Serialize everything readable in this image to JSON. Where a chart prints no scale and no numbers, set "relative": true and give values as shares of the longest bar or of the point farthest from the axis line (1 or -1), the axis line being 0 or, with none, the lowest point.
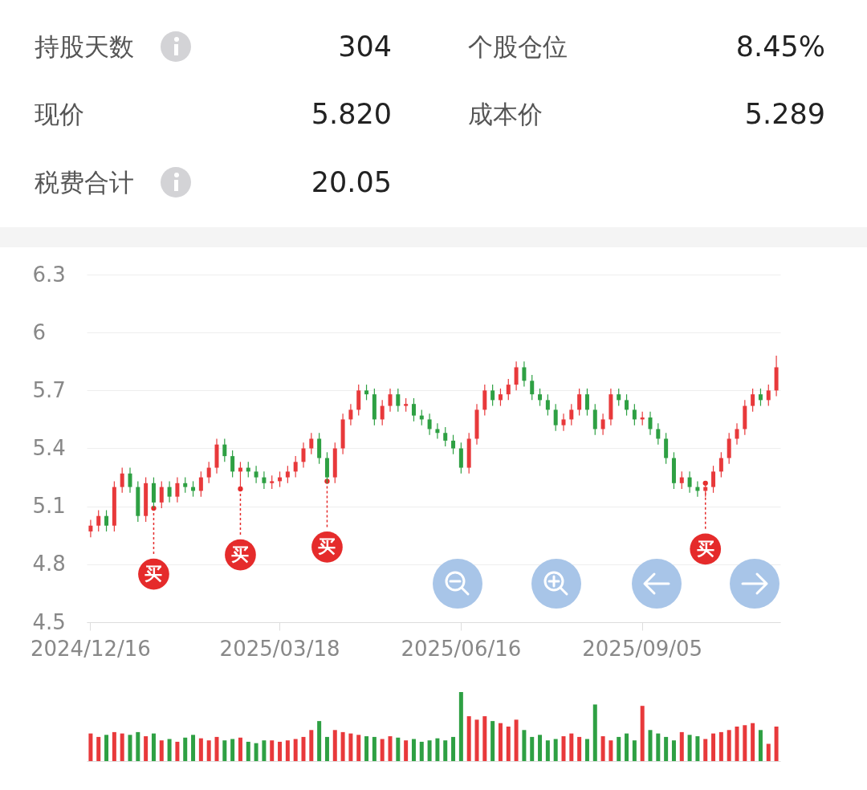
{
  "chart_data": [
    {
      "type": "other",
      "annotations": [
        "持股天数",
        "304",
        "个股仓位",
        "8.45%",
        "现价",
        "5.820",
        "成本价",
        "5.289",
        "税费合计",
        "20.05"
      ]
    },
    {
      "type": "candlestick",
      "grid": "y",
      "ylim": [
        4.5,
        6.3
      ],
      "yticks": [
        4.5,
        4.8,
        5.1,
        5.4,
        5.7,
        6,
        6.3
      ],
      "categories": [
        "2024/12/16",
        null,
        null,
        null,
        null,
        null,
        null,
        null,
        null,
        null,
        null,
        null,
        null,
        null,
        null,
        null,
        null,
        null,
        null,
        null,
        null,
        null,
        null,
        null,
        "2025/03/18",
        null,
        null,
        null,
        null,
        null,
        null,
        null,
        null,
        null,
        null,
        null,
        null,
        null,
        null,
        null,
        null,
        null,
        null,
        null,
        null,
        null,
        null,
        "2025/06/16",
        null,
        null,
        null,
        null,
        null,
        null,
        null,
        null,
        null,
        null,
        null,
        null,
        null,
        null,
        null,
        null,
        null,
        null,
        null,
        null,
        null,
        null,
        "2025/09/05",
        null,
        null,
        null,
        null,
        null,
        null,
        null,
        null,
        null,
        null,
        null,
        null,
        null,
        null,
        null,
        null,
        null
      ],
      "ohlc": [
        [
          4.97,
          5.03,
          4.94,
          5.0
        ],
        [
          5.0,
          5.08,
          4.97,
          5.05
        ],
        [
          5.05,
          5.08,
          4.97,
          5.0
        ],
        [
          5.0,
          5.23,
          4.97,
          5.2
        ],
        [
          5.2,
          5.3,
          5.17,
          5.27
        ],
        [
          5.27,
          5.3,
          5.17,
          5.2
        ],
        [
          5.2,
          5.23,
          5.02,
          5.05
        ],
        [
          5.05,
          5.25,
          5.02,
          5.22
        ],
        [
          5.22,
          5.25,
          5.09,
          5.12
        ],
        [
          5.12,
          5.23,
          5.09,
          5.2
        ],
        [
          5.2,
          5.23,
          5.12,
          5.15
        ],
        [
          5.15,
          5.25,
          5.12,
          5.22
        ],
        [
          5.22,
          5.25,
          5.17,
          5.2
        ],
        [
          5.2,
          5.23,
          5.15,
          5.18
        ],
        [
          5.18,
          5.28,
          5.15,
          5.25
        ],
        [
          5.25,
          5.33,
          5.22,
          5.3
        ],
        [
          5.3,
          5.45,
          5.27,
          5.42
        ],
        [
          5.42,
          5.45,
          5.33,
          5.36
        ],
        [
          5.36,
          5.39,
          5.25,
          5.28
        ],
        [
          5.28,
          5.33,
          5.19,
          5.3
        ],
        [
          5.3,
          5.33,
          5.25,
          5.28
        ],
        [
          5.28,
          5.31,
          5.22,
          5.25
        ],
        [
          5.25,
          5.28,
          5.19,
          5.22
        ],
        [
          5.22,
          5.26,
          5.19,
          5.23
        ],
        [
          5.23,
          5.28,
          5.2,
          5.25
        ],
        [
          5.25,
          5.31,
          5.22,
          5.28
        ],
        [
          5.28,
          5.36,
          5.25,
          5.33
        ],
        [
          5.33,
          5.43,
          5.3,
          5.4
        ],
        [
          5.4,
          5.48,
          5.37,
          5.45
        ],
        [
          5.45,
          5.48,
          5.32,
          5.35
        ],
        [
          5.35,
          5.38,
          5.22,
          5.25
        ],
        [
          5.25,
          5.43,
          5.22,
          5.4
        ],
        [
          5.4,
          5.58,
          5.37,
          5.55
        ],
        [
          5.55,
          5.63,
          5.52,
          5.6
        ],
        [
          5.6,
          5.73,
          5.57,
          5.7
        ],
        [
          5.7,
          5.73,
          5.65,
          5.68
        ],
        [
          5.68,
          5.71,
          5.52,
          5.55
        ],
        [
          5.55,
          5.65,
          5.52,
          5.62
        ],
        [
          5.62,
          5.71,
          5.59,
          5.68
        ],
        [
          5.68,
          5.71,
          5.59,
          5.62
        ],
        [
          5.62,
          5.66,
          5.59,
          5.63
        ],
        [
          5.63,
          5.66,
          5.54,
          5.57
        ],
        [
          5.57,
          5.6,
          5.52,
          5.55
        ],
        [
          5.55,
          5.58,
          5.47,
          5.5
        ],
        [
          5.5,
          5.53,
          5.45,
          5.48
        ],
        [
          5.48,
          5.51,
          5.41,
          5.44
        ],
        [
          5.44,
          5.47,
          5.37,
          5.4
        ],
        [
          5.4,
          5.43,
          5.27,
          5.3
        ],
        [
          5.3,
          5.48,
          5.27,
          5.45
        ],
        [
          5.45,
          5.63,
          5.42,
          5.6
        ],
        [
          5.6,
          5.73,
          5.57,
          5.7
        ],
        [
          5.7,
          5.73,
          5.62,
          5.65
        ],
        [
          5.65,
          5.71,
          5.62,
          5.68
        ],
        [
          5.68,
          5.76,
          5.65,
          5.73
        ],
        [
          5.73,
          5.85,
          5.7,
          5.82
        ],
        [
          5.82,
          5.85,
          5.72,
          5.75
        ],
        [
          5.75,
          5.78,
          5.65,
          5.68
        ],
        [
          5.68,
          5.71,
          5.62,
          5.65
        ],
        [
          5.65,
          5.68,
          5.57,
          5.6
        ],
        [
          5.6,
          5.63,
          5.49,
          5.52
        ],
        [
          5.52,
          5.58,
          5.49,
          5.55
        ],
        [
          5.55,
          5.63,
          5.52,
          5.6
        ],
        [
          5.6,
          5.71,
          5.57,
          5.68
        ],
        [
          5.68,
          5.71,
          5.57,
          5.6
        ],
        [
          5.6,
          5.63,
          5.47,
          5.5
        ],
        [
          5.5,
          5.58,
          5.47,
          5.55
        ],
        [
          5.55,
          5.71,
          5.52,
          5.68
        ],
        [
          5.68,
          5.71,
          5.62,
          5.65
        ],
        [
          5.65,
          5.68,
          5.57,
          5.6
        ],
        [
          5.6,
          5.63,
          5.52,
          5.55
        ],
        [
          5.55,
          5.59,
          5.52,
          5.56
        ],
        [
          5.56,
          5.59,
          5.47,
          5.5
        ],
        [
          5.5,
          5.53,
          5.42,
          5.45
        ],
        [
          5.45,
          5.48,
          5.32,
          5.35
        ],
        [
          5.35,
          5.38,
          5.19,
          5.22
        ],
        [
          5.22,
          5.28,
          5.19,
          5.25
        ],
        [
          5.25,
          5.28,
          5.17,
          5.2
        ],
        [
          5.2,
          5.23,
          5.15,
          5.18
        ],
        [
          5.18,
          5.23,
          5.15,
          5.2
        ],
        [
          5.2,
          5.31,
          5.17,
          5.28
        ],
        [
          5.28,
          5.38,
          5.25,
          5.35
        ],
        [
          5.35,
          5.48,
          5.32,
          5.45
        ],
        [
          5.45,
          5.53,
          5.42,
          5.5
        ],
        [
          5.5,
          5.65,
          5.47,
          5.62
        ],
        [
          5.62,
          5.71,
          5.59,
          5.68
        ],
        [
          5.68,
          5.71,
          5.62,
          5.65
        ],
        [
          5.65,
          5.73,
          5.62,
          5.7
        ],
        [
          5.7,
          5.88,
          5.67,
          5.82
        ]
      ],
      "colors": [
        "#e8393b",
        "#e8393b",
        "#2ea043",
        "#e8393b",
        "#e8393b",
        "#2ea043",
        "#2ea043",
        "#e8393b",
        "#2ea043",
        "#e8393b",
        "#2ea043",
        "#e8393b",
        "#2ea043",
        "#2ea043",
        "#e8393b",
        "#e8393b",
        "#e8393b",
        "#2ea043",
        "#2ea043",
        "#e8393b",
        "#2ea043",
        "#2ea043",
        "#2ea043",
        "#e8393b",
        "#e8393b",
        "#e8393b",
        "#e8393b",
        "#e8393b",
        "#e8393b",
        "#2ea043",
        "#2ea043",
        "#e8393b",
        "#e8393b",
        "#e8393b",
        "#e8393b",
        "#2ea043",
        "#2ea043",
        "#e8393b",
        "#e8393b",
        "#2ea043",
        "#e8393b",
        "#2ea043",
        "#2ea043",
        "#2ea043",
        "#2ea043",
        "#2ea043",
        "#2ea043",
        "#2ea043",
        "#e8393b",
        "#e8393b",
        "#e8393b",
        "#2ea043",
        "#e8393b",
        "#e8393b",
        "#e8393b",
        "#2ea043",
        "#2ea043",
        "#2ea043",
        "#2ea043",
        "#2ea043",
        "#e8393b",
        "#e8393b",
        "#e8393b",
        "#2ea043",
        "#2ea043",
        "#e8393b",
        "#e8393b",
        "#2ea043",
        "#2ea043",
        "#2ea043",
        "#e8393b",
        "#2ea043",
        "#2ea043",
        "#2ea043",
        "#2ea043",
        "#e8393b",
        "#2ea043",
        "#2ea043",
        "#e8393b",
        "#e8393b",
        "#e8393b",
        "#e8393b",
        "#e8393b",
        "#e8393b",
        "#e8393b",
        "#2ea043",
        "#e8393b",
        "#e8393b"
      ],
      "series": [
        {
          "type": "scatter",
          "color": "#e52b2b",
          "marker": "circle",
          "values": [
            null,
            null,
            null,
            null,
            null,
            null,
            null,
            null,
            5.09,
            null,
            null,
            null,
            null,
            null,
            null,
            null,
            null,
            null,
            null,
            5.19,
            null,
            null,
            null,
            null,
            null,
            null,
            null,
            null,
            null,
            null,
            5.23,
            null,
            null,
            null,
            null,
            null,
            null,
            null,
            null,
            null,
            null,
            null,
            null,
            null,
            null,
            null,
            null,
            null,
            null,
            null,
            null,
            null,
            null,
            null,
            null,
            null,
            null,
            null,
            null,
            null,
            null,
            null,
            null,
            null,
            null,
            null,
            null,
            null,
            null,
            null,
            null,
            null,
            null,
            null,
            null,
            null,
            null,
            null,
            5.22,
            null,
            null,
            null,
            null,
            null,
            null,
            null,
            null,
            null
          ],
          "value_labels": [
            null,
            null,
            null,
            null,
            null,
            null,
            null,
            null,
            "买",
            null,
            null,
            null,
            null,
            null,
            null,
            null,
            null,
            null,
            null,
            "买",
            null,
            null,
            null,
            null,
            null,
            null,
            null,
            null,
            null,
            null,
            "买",
            null,
            null,
            null,
            null,
            null,
            null,
            null,
            null,
            null,
            null,
            null,
            null,
            null,
            null,
            null,
            null,
            null,
            null,
            null,
            null,
            null,
            null,
            null,
            null,
            null,
            null,
            null,
            null,
            null,
            null,
            null,
            null,
            null,
            null,
            null,
            null,
            null,
            null,
            null,
            null,
            null,
            null,
            null,
            null,
            null,
            null,
            null,
            "买",
            null,
            null,
            null,
            null,
            null,
            null,
            null,
            null,
            null
          ]
        }
      ]
    },
    {
      "type": "bar",
      "relative": true,
      "categories": [
        null,
        null,
        null,
        null,
        null,
        null,
        null,
        null,
        null,
        null,
        null,
        null,
        null,
        null,
        null,
        null,
        null,
        null,
        null,
        null,
        null,
        null,
        null,
        null,
        null,
        null,
        null,
        null,
        null,
        null,
        null,
        null,
        null,
        null,
        null,
        null,
        null,
        null,
        null,
        null,
        null,
        null,
        null,
        null,
        null,
        null,
        null,
        null,
        null,
        null,
        null,
        null,
        null,
        null,
        null,
        null,
        null,
        null,
        null,
        null,
        null,
        null,
        null,
        null,
        null,
        null,
        null,
        null,
        null,
        null,
        null,
        null,
        null,
        null,
        null,
        null,
        null,
        null,
        null,
        null,
        null,
        null,
        null,
        null,
        null,
        null,
        null,
        null
      ],
      "values": [
        0.4,
        0.35,
        0.38,
        0.42,
        0.4,
        0.38,
        0.42,
        0.36,
        0.4,
        0.3,
        0.32,
        0.28,
        0.34,
        0.38,
        0.33,
        0.3,
        0.35,
        0.3,
        0.32,
        0.34,
        0.28,
        0.26,
        0.3,
        0.3,
        0.28,
        0.3,
        0.32,
        0.35,
        0.45,
        0.58,
        0.35,
        0.45,
        0.42,
        0.4,
        0.38,
        0.36,
        0.35,
        0.32,
        0.36,
        0.34,
        0.3,
        0.32,
        0.28,
        0.3,
        0.33,
        0.3,
        0.35,
        1,
        0.65,
        0.6,
        0.65,
        0.58,
        0.55,
        0.5,
        0.6,
        0.45,
        0.35,
        0.38,
        0.3,
        0.32,
        0.36,
        0.4,
        0.35,
        0.32,
        0.82,
        0.36,
        0.3,
        0.35,
        0.4,
        0.3,
        0.8,
        0.45,
        0.4,
        0.35,
        0.3,
        0.42,
        0.38,
        0.36,
        0.32,
        0.4,
        0.42,
        0.45,
        0.5,
        0.52,
        0.55,
        0.45,
        0.25,
        0.5
      ],
      "colors": [
        "#e8393b",
        "#e8393b",
        "#2ea043",
        "#e8393b",
        "#e8393b",
        "#2ea043",
        "#2ea043",
        "#e8393b",
        "#2ea043",
        "#e8393b",
        "#2ea043",
        "#e8393b",
        "#2ea043",
        "#2ea043",
        "#e8393b",
        "#e8393b",
        "#e8393b",
        "#2ea043",
        "#2ea043",
        "#e8393b",
        "#2ea043",
        "#2ea043",
        "#2ea043",
        "#e8393b",
        "#e8393b",
        "#e8393b",
        "#e8393b",
        "#e8393b",
        "#e8393b",
        "#2ea043",
        "#2ea043",
        "#e8393b",
        "#e8393b",
        "#e8393b",
        "#e8393b",
        "#2ea043",
        "#2ea043",
        "#e8393b",
        "#e8393b",
        "#2ea043",
        "#e8393b",
        "#2ea043",
        "#2ea043",
        "#2ea043",
        "#2ea043",
        "#2ea043",
        "#2ea043",
        "#2ea043",
        "#e8393b",
        "#e8393b",
        "#e8393b",
        "#2ea043",
        "#e8393b",
        "#e8393b",
        "#e8393b",
        "#2ea043",
        "#2ea043",
        "#2ea043",
        "#2ea043",
        "#2ea043",
        "#e8393b",
        "#e8393b",
        "#e8393b",
        "#2ea043",
        "#2ea043",
        "#e8393b",
        "#e8393b",
        "#2ea043",
        "#2ea043",
        "#2ea043",
        "#e8393b",
        "#2ea043",
        "#2ea043",
        "#2ea043",
        "#2ea043",
        "#e8393b",
        "#2ea043",
        "#2ea043",
        "#e8393b",
        "#e8393b",
        "#e8393b",
        "#e8393b",
        "#e8393b",
        "#e8393b",
        "#e8393b",
        "#2ea043",
        "#e8393b",
        "#e8393b"
      ]
    }
  ]
}
